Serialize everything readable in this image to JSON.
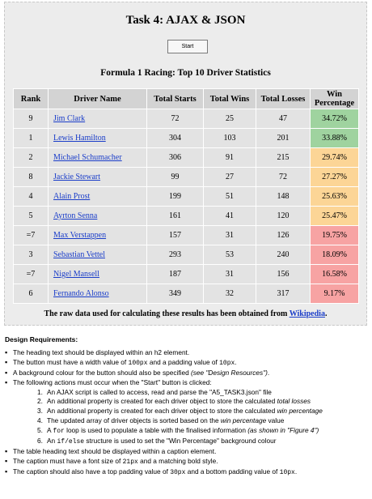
{
  "panel": {
    "title": "Task 4: AJAX & JSON",
    "start_label": "Start",
    "caption": "Formula 1 Racing: Top 10 Driver Statistics",
    "source_text": "The raw data used for calculating these results has been obtained from ",
    "source_link": "Wikipedia",
    "source_end": "."
  },
  "table": {
    "headers": [
      "Rank",
      "Driver Name",
      "Total Starts",
      "Total Wins",
      "Total Losses",
      "Win Percentage"
    ],
    "rows": [
      {
        "rank": "9",
        "name": "Jim Clark",
        "starts": "72",
        "wins": "25",
        "losses": "47",
        "pct": "34.72%",
        "color": "#9fd39f"
      },
      {
        "rank": "1",
        "name": "Lewis Hamilton",
        "starts": "304",
        "wins": "103",
        "losses": "201",
        "pct": "33.88%",
        "color": "#9fd39f"
      },
      {
        "rank": "2",
        "name": "Michael Schumacher",
        "starts": "306",
        "wins": "91",
        "losses": "215",
        "pct": "29.74%",
        "color": "#fcd596"
      },
      {
        "rank": "8",
        "name": "Jackie Stewart",
        "starts": "99",
        "wins": "27",
        "losses": "72",
        "pct": "27.27%",
        "color": "#fcd596"
      },
      {
        "rank": "4",
        "name": "Alain Prost",
        "starts": "199",
        "wins": "51",
        "losses": "148",
        "pct": "25.63%",
        "color": "#fcd596"
      },
      {
        "rank": "5",
        "name": "Ayrton Senna",
        "starts": "161",
        "wins": "41",
        "losses": "120",
        "pct": "25.47%",
        "color": "#fcd596"
      },
      {
        "rank": "=7",
        "name": "Max Verstappen",
        "starts": "157",
        "wins": "31",
        "losses": "126",
        "pct": "19.75%",
        "color": "#f7a3a3"
      },
      {
        "rank": "3",
        "name": "Sebastian Vettel",
        "starts": "293",
        "wins": "53",
        "losses": "240",
        "pct": "18.09%",
        "color": "#f7a3a3"
      },
      {
        "rank": "=7",
        "name": "Nigel Mansell",
        "starts": "187",
        "wins": "31",
        "losses": "156",
        "pct": "16.58%",
        "color": "#f7a3a3"
      },
      {
        "rank": "6",
        "name": "Fernando Alonso",
        "starts": "349",
        "wins": "32",
        "losses": "317",
        "pct": "9.17%",
        "color": "#f7a3a3"
      }
    ]
  },
  "requirements": {
    "heading": "Design Requirements:",
    "b1": "The heading text should be displayed within an h2 element.",
    "b2_a": "The button must have a width value of ",
    "b2_code1": "100px",
    "b2_b": " and a padding value of ",
    "b2_code2": "10px",
    "b2_c": ".",
    "b3_a": "A background colour for the button should also be specified ",
    "b3_i": "(see \"Design Resources\")",
    "b3_b": ".",
    "b4": "The following actions must occur when the \"Start\" button is clicked:",
    "s1": "An AJAX script is called to access, read and parse the \"A5_TASK3.json\" file",
    "s2_a": "An additional property is created for each driver object to store the calculated ",
    "s2_i": "total losses",
    "s3_a": "An additional property is created for each driver object to store the calculated ",
    "s3_i": "win percentage",
    "s4_a": "The updated array of driver objects is sorted based on the ",
    "s4_i": "win percentage",
    "s4_b": " value",
    "s5_a": "A ",
    "s5_code": "for",
    "s5_b": " loop is used to populate a table with the finalised information ",
    "s5_i": "(as shown in \"Figure 4\")",
    "s6_a": "An ",
    "s6_code": "if/else",
    "s6_b": " structure is used to set the \"Win Percentage\" background colour",
    "b5": "The table heading text should be displayed within a caption element.",
    "b6_a": "The caption must have a font size of ",
    "b6_code": "21px",
    "b6_b": " and a matching bold style.",
    "b7_a": "The caption should also have a top padding value of ",
    "b7_code1": "30px",
    "b7_b": " and a bottom padding value of ",
    "b7_code2": "10px",
    "b7_c": "."
  }
}
